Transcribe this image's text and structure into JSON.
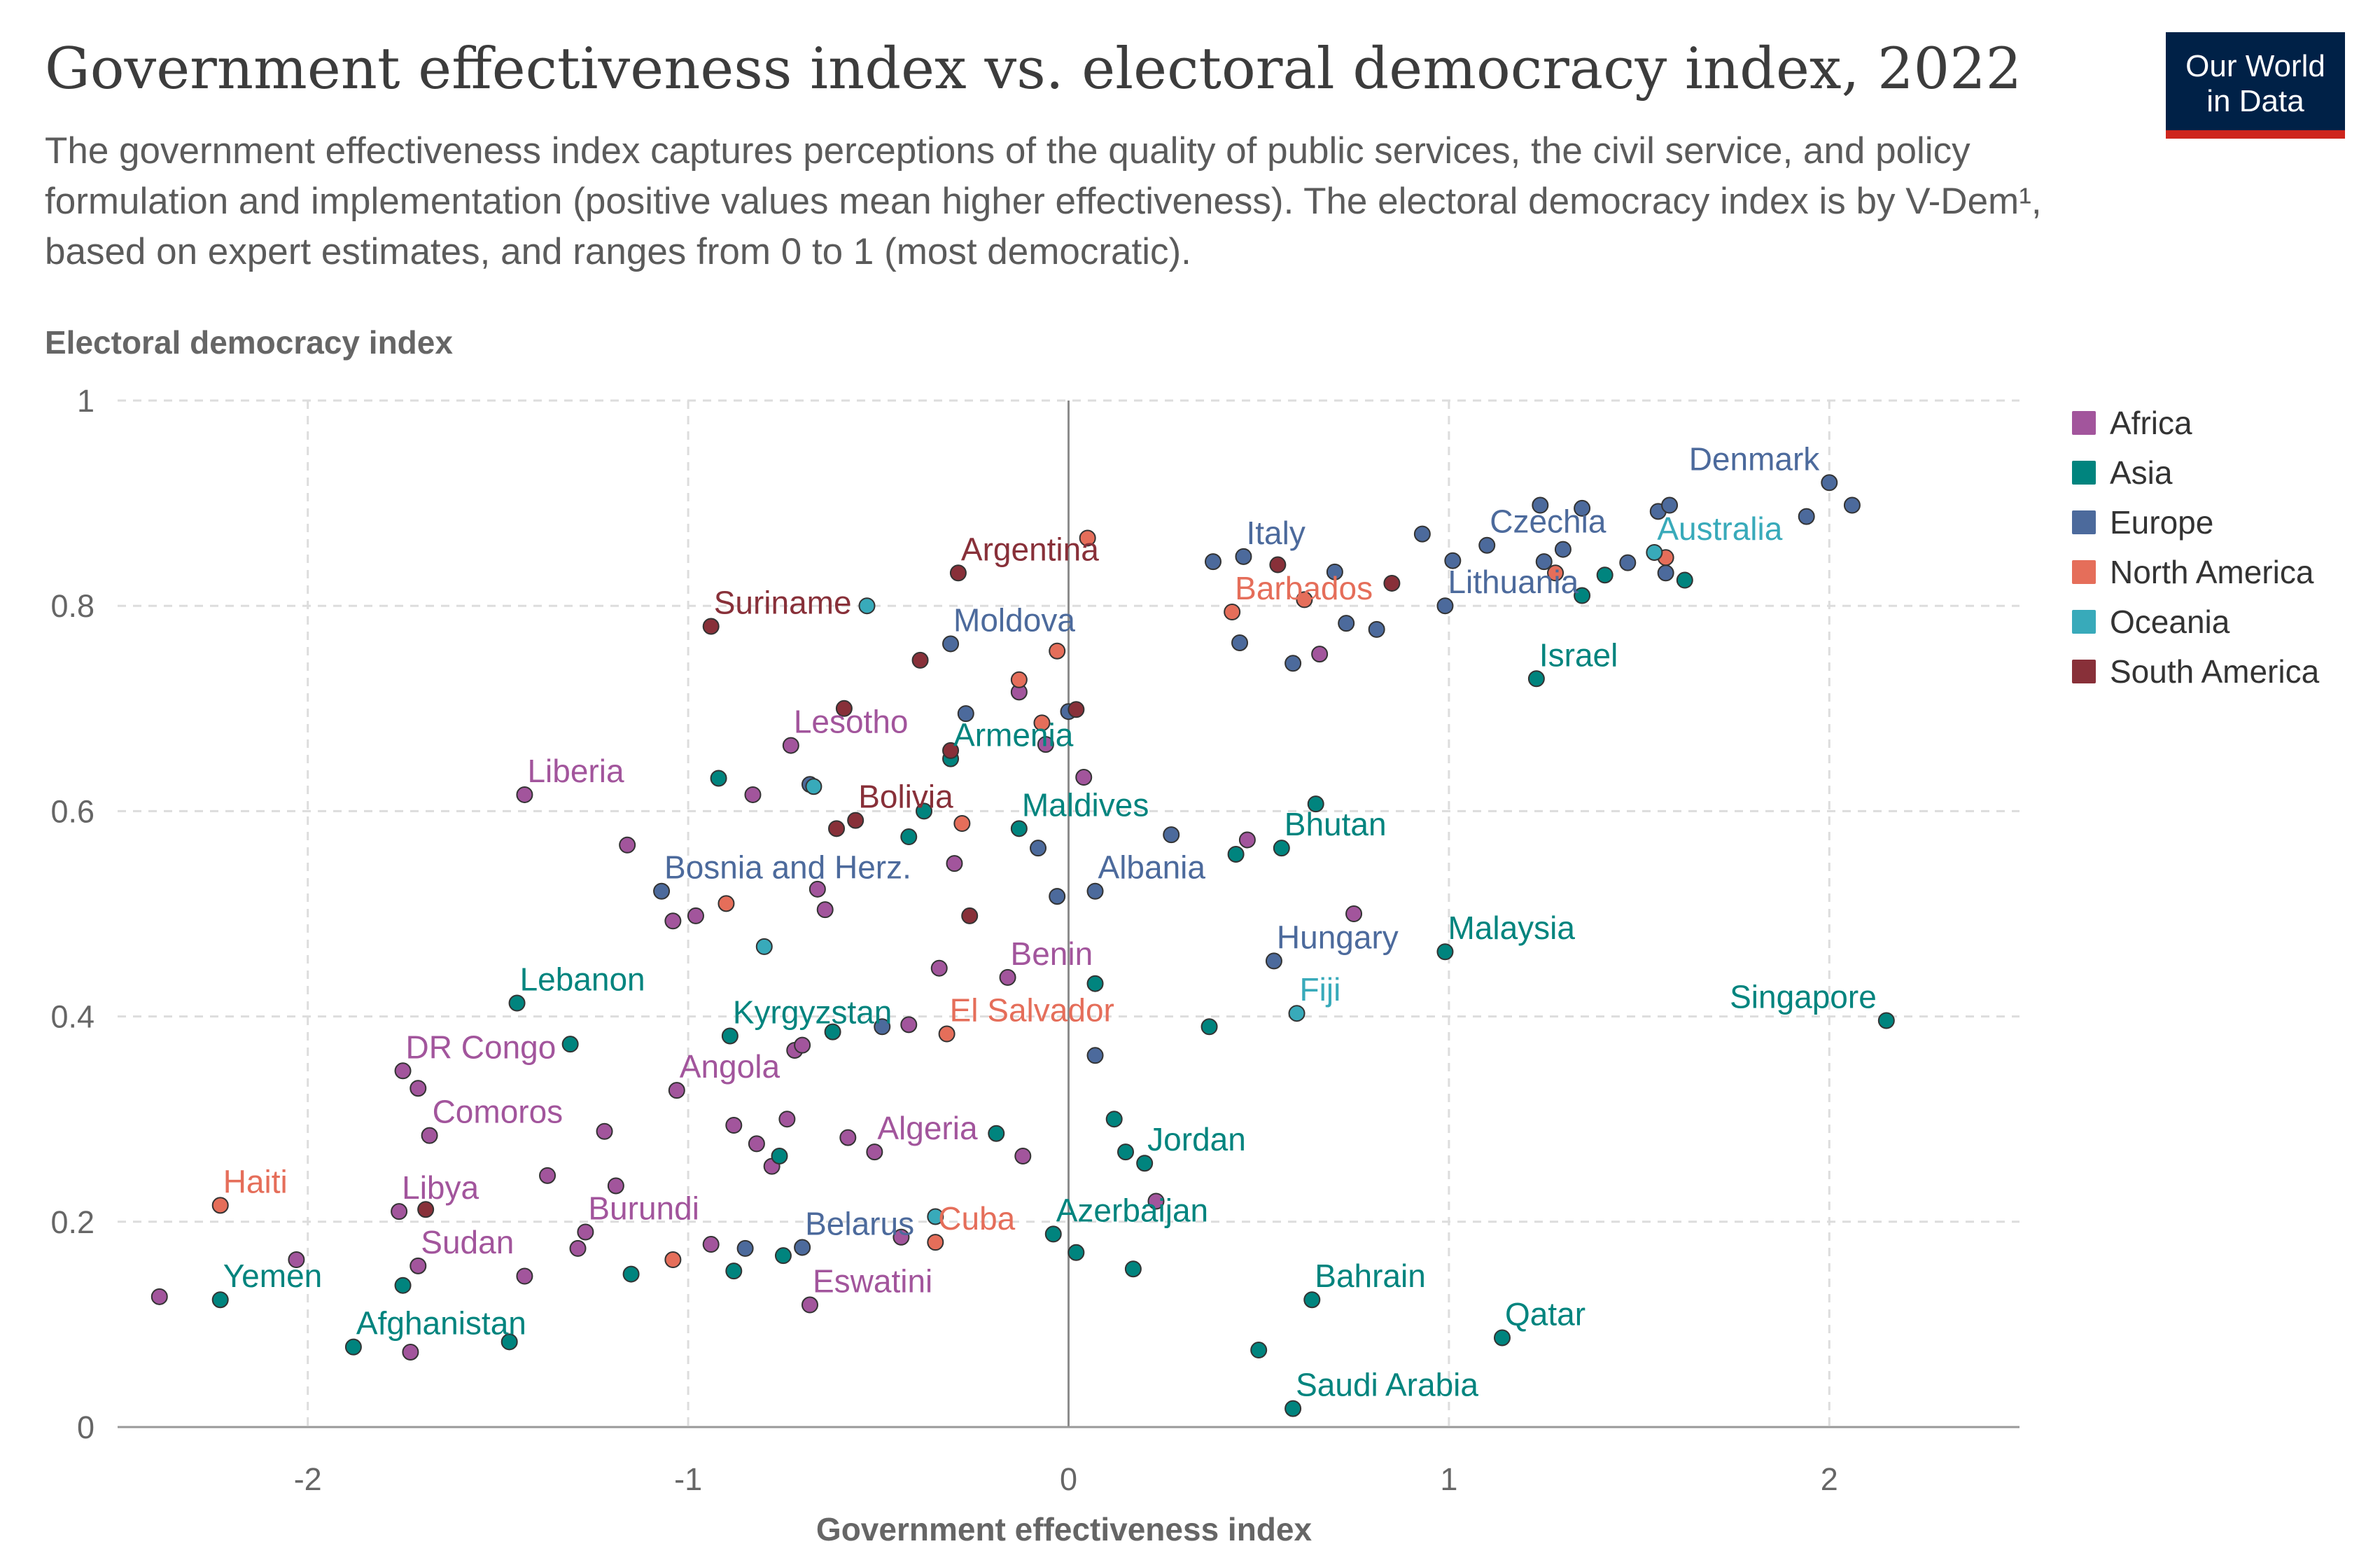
{
  "branding": {
    "logo_line1": "Our World",
    "logo_line2": "in Data"
  },
  "chart_data": {
    "type": "scatter",
    "title": "Government effectiveness index vs. electoral democracy index, 2022",
    "subtitle": "The government effectiveness index captures perceptions of the quality of public services, the civil service, and policy formulation and implementation (positive values mean higher effectiveness). The electoral democracy index is by V-Dem¹, based on expert estimates, and ranges from 0 to 1 (most democratic).",
    "xlabel": "Government effectiveness index",
    "ylabel": "Electoral democracy index",
    "xlim": [
      -2.5,
      2.5
    ],
    "ylim": [
      0,
      1
    ],
    "xticks": [
      -2,
      -1,
      0,
      1,
      2
    ],
    "xtick_labels": [
      "-2",
      "-1",
      "0",
      "1",
      "2"
    ],
    "yticks": [
      0,
      0.2,
      0.4,
      0.6,
      0.8,
      1
    ],
    "ytick_labels": [
      "0",
      "0.2",
      "0.4",
      "0.6",
      "0.8",
      "1"
    ],
    "grid": true,
    "legend_position": "right",
    "series": [
      {
        "name": "Africa",
        "color": "#a2559c",
        "points": [
          {
            "x": -0.73,
            "y": 0.664,
            "label": "Lesotho"
          },
          {
            "x": -1.43,
            "y": 0.616,
            "label": "Liberia"
          },
          {
            "x": -0.16,
            "y": 0.438,
            "label": "Benin"
          },
          {
            "x": -1.75,
            "y": 0.347,
            "label": "DR Congo"
          },
          {
            "x": -1.03,
            "y": 0.328,
            "label": "Angola"
          },
          {
            "x": -1.68,
            "y": 0.284,
            "label": "Comoros"
          },
          {
            "x": -0.51,
            "y": 0.268,
            "label": "Algeria"
          },
          {
            "x": -1.76,
            "y": 0.21,
            "label": "Libya"
          },
          {
            "x": -1.27,
            "y": 0.19,
            "label": "Burundi"
          },
          {
            "x": -1.71,
            "y": 0.157,
            "label": "Sudan"
          },
          {
            "x": -0.68,
            "y": 0.119,
            "label": "Eswatini"
          },
          {
            "x": -2.39,
            "y": 0.127
          },
          {
            "x": -2.03,
            "y": 0.163
          },
          {
            "x": -1.73,
            "y": 0.073
          },
          {
            "x": -1.71,
            "y": 0.33
          },
          {
            "x": -1.43,
            "y": 0.147
          },
          {
            "x": -1.37,
            "y": 0.245
          },
          {
            "x": -1.29,
            "y": 0.174
          },
          {
            "x": -1.22,
            "y": 0.288
          },
          {
            "x": -1.19,
            "y": 0.235
          },
          {
            "x": -1.16,
            "y": 0.567
          },
          {
            "x": -1.04,
            "y": 0.493
          },
          {
            "x": -0.98,
            "y": 0.498
          },
          {
            "x": -0.94,
            "y": 0.178
          },
          {
            "x": -0.88,
            "y": 0.294
          },
          {
            "x": -0.83,
            "y": 0.616
          },
          {
            "x": -0.82,
            "y": 0.276
          },
          {
            "x": -0.78,
            "y": 0.254
          },
          {
            "x": -0.74,
            "y": 0.3
          },
          {
            "x": -0.72,
            "y": 0.367
          },
          {
            "x": -0.7,
            "y": 0.372
          },
          {
            "x": -0.66,
            "y": 0.524
          },
          {
            "x": -0.64,
            "y": 0.504
          },
          {
            "x": -0.58,
            "y": 0.282
          },
          {
            "x": -0.44,
            "y": 0.185
          },
          {
            "x": -0.42,
            "y": 0.392
          },
          {
            "x": -0.34,
            "y": 0.447
          },
          {
            "x": -0.3,
            "y": 0.549
          },
          {
            "x": -0.13,
            "y": 0.716
          },
          {
            "x": -0.12,
            "y": 0.264
          },
          {
            "x": -0.06,
            "y": 0.665
          },
          {
            "x": 0.04,
            "y": 0.633
          },
          {
            "x": 0.47,
            "y": 0.572
          },
          {
            "x": 0.66,
            "y": 0.753
          },
          {
            "x": 0.75,
            "y": 0.5
          },
          {
            "x": 0.23,
            "y": 0.22
          }
        ]
      },
      {
        "name": "Asia",
        "color": "#00847e",
        "points": [
          {
            "x": 1.23,
            "y": 0.729,
            "label": "Israel"
          },
          {
            "x": -0.31,
            "y": 0.651,
            "label": "Armenia"
          },
          {
            "x": -0.13,
            "y": 0.583,
            "label": "Maldives"
          },
          {
            "x": 0.56,
            "y": 0.564,
            "label": "Bhutan"
          },
          {
            "x": 0.99,
            "y": 0.463,
            "label": "Malaysia"
          },
          {
            "x": 2.15,
            "y": 0.396,
            "label": "Singapore"
          },
          {
            "x": -1.45,
            "y": 0.413,
            "label": "Lebanon"
          },
          {
            "x": -0.89,
            "y": 0.381,
            "label": "Kyrgyzstan"
          },
          {
            "x": 0.2,
            "y": 0.257,
            "label": "Jordan"
          },
          {
            "x": -0.04,
            "y": 0.188,
            "label": "Azerbaijan"
          },
          {
            "x": 0.64,
            "y": 0.124,
            "label": "Bahrain"
          },
          {
            "x": 1.14,
            "y": 0.087,
            "label": "Qatar"
          },
          {
            "x": 0.59,
            "y": 0.018,
            "label": "Saudi Arabia"
          },
          {
            "x": -2.23,
            "y": 0.124,
            "label": "Yemen"
          },
          {
            "x": -1.88,
            "y": 0.078,
            "label": "Afghanistan"
          },
          {
            "x": -1.75,
            "y": 0.138
          },
          {
            "x": -1.47,
            "y": 0.083
          },
          {
            "x": -1.31,
            "y": 0.373
          },
          {
            "x": -1.15,
            "y": 0.149
          },
          {
            "x": -0.92,
            "y": 0.632
          },
          {
            "x": -0.88,
            "y": 0.152
          },
          {
            "x": -0.76,
            "y": 0.264
          },
          {
            "x": -0.75,
            "y": 0.167
          },
          {
            "x": -0.62,
            "y": 0.385
          },
          {
            "x": -0.42,
            "y": 0.575
          },
          {
            "x": -0.38,
            "y": 0.6
          },
          {
            "x": -0.19,
            "y": 0.286
          },
          {
            "x": 0.02,
            "y": 0.17
          },
          {
            "x": 0.07,
            "y": 0.432
          },
          {
            "x": 0.12,
            "y": 0.3
          },
          {
            "x": 0.15,
            "y": 0.268
          },
          {
            "x": 0.17,
            "y": 0.154
          },
          {
            "x": 0.37,
            "y": 0.39
          },
          {
            "x": 0.44,
            "y": 0.558
          },
          {
            "x": 0.5,
            "y": 0.075
          },
          {
            "x": 0.65,
            "y": 0.607
          },
          {
            "x": 1.35,
            "y": 0.81
          },
          {
            "x": 1.41,
            "y": 0.83
          },
          {
            "x": 1.62,
            "y": 0.825
          }
        ]
      },
      {
        "name": "Europe",
        "color": "#4c6a9c",
        "points": [
          {
            "x": 2.0,
            "y": 0.92,
            "label": "Denmark"
          },
          {
            "x": 1.1,
            "y": 0.859,
            "label": "Czechia"
          },
          {
            "x": 0.46,
            "y": 0.848,
            "label": "Italy"
          },
          {
            "x": 0.99,
            "y": 0.8,
            "label": "Lithuania"
          },
          {
            "x": -0.31,
            "y": 0.763,
            "label": "Moldova"
          },
          {
            "x": -1.07,
            "y": 0.522,
            "label": "Bosnia and Herz."
          },
          {
            "x": 0.07,
            "y": 0.522,
            "label": "Albania"
          },
          {
            "x": 0.54,
            "y": 0.454,
            "label": "Hungary"
          },
          {
            "x": -0.7,
            "y": 0.175,
            "label": "Belarus"
          },
          {
            "x": -0.85,
            "y": 0.174
          },
          {
            "x": -0.68,
            "y": 0.626
          },
          {
            "x": -0.49,
            "y": 0.39
          },
          {
            "x": -0.27,
            "y": 0.695
          },
          {
            "x": -0.08,
            "y": 0.564
          },
          {
            "x": -0.03,
            "y": 0.517
          },
          {
            "x": 0.0,
            "y": 0.697
          },
          {
            "x": 0.07,
            "y": 0.362
          },
          {
            "x": 0.27,
            "y": 0.577
          },
          {
            "x": 0.38,
            "y": 0.843
          },
          {
            "x": 0.45,
            "y": 0.764
          },
          {
            "x": 0.59,
            "y": 0.744
          },
          {
            "x": 0.7,
            "y": 0.833
          },
          {
            "x": 0.73,
            "y": 0.783
          },
          {
            "x": 0.81,
            "y": 0.777
          },
          {
            "x": 0.93,
            "y": 0.87
          },
          {
            "x": 1.01,
            "y": 0.844
          },
          {
            "x": 1.24,
            "y": 0.898
          },
          {
            "x": 1.25,
            "y": 0.843
          },
          {
            "x": 1.3,
            "y": 0.855
          },
          {
            "x": 1.35,
            "y": 0.895
          },
          {
            "x": 1.47,
            "y": 0.842
          },
          {
            "x": 1.55,
            "y": 0.892
          },
          {
            "x": 1.57,
            "y": 0.832
          },
          {
            "x": 1.58,
            "y": 0.898
          },
          {
            "x": 1.94,
            "y": 0.887
          },
          {
            "x": 2.06,
            "y": 0.898
          }
        ]
      },
      {
        "name": "North America",
        "color": "#e56e5a",
        "points": [
          {
            "x": 0.43,
            "y": 0.794,
            "label": "Barbados"
          },
          {
            "x": -0.32,
            "y": 0.383,
            "label": "El Salvador"
          },
          {
            "x": -2.23,
            "y": 0.216,
            "label": "Haiti"
          },
          {
            "x": -0.35,
            "y": 0.18,
            "label": "Cuba"
          },
          {
            "x": -1.04,
            "y": 0.163
          },
          {
            "x": -0.9,
            "y": 0.51
          },
          {
            "x": -0.28,
            "y": 0.588
          },
          {
            "x": -0.13,
            "y": 0.728
          },
          {
            "x": -0.07,
            "y": 0.686
          },
          {
            "x": -0.03,
            "y": 0.756
          },
          {
            "x": 0.05,
            "y": 0.866
          },
          {
            "x": 0.62,
            "y": 0.806
          },
          {
            "x": 1.28,
            "y": 0.832
          },
          {
            "x": 1.57,
            "y": 0.847
          }
        ]
      },
      {
        "name": "Oceania",
        "color": "#38aaba",
        "points": [
          {
            "x": 1.54,
            "y": 0.852,
            "label": "Australia"
          },
          {
            "x": 0.6,
            "y": 0.403,
            "label": "Fiji"
          },
          {
            "x": -0.53,
            "y": 0.8
          },
          {
            "x": -0.8,
            "y": 0.468
          },
          {
            "x": -0.67,
            "y": 0.624
          },
          {
            "x": -0.35,
            "y": 0.205
          }
        ]
      },
      {
        "name": "South America",
        "color": "#883039",
        "points": [
          {
            "x": -0.29,
            "y": 0.832,
            "label": "Argentina"
          },
          {
            "x": -0.94,
            "y": 0.78,
            "label": "Suriname"
          },
          {
            "x": -0.56,
            "y": 0.591,
            "label": "Bolivia"
          },
          {
            "x": -0.39,
            "y": 0.747
          },
          {
            "x": -0.59,
            "y": 0.7
          },
          {
            "x": -0.61,
            "y": 0.583
          },
          {
            "x": -0.31,
            "y": 0.659
          },
          {
            "x": -0.26,
            "y": 0.498
          },
          {
            "x": 0.02,
            "y": 0.699
          },
          {
            "x": 0.55,
            "y": 0.84
          },
          {
            "x": 0.85,
            "y": 0.822
          },
          {
            "x": -1.69,
            "y": 0.212
          }
        ]
      }
    ]
  }
}
